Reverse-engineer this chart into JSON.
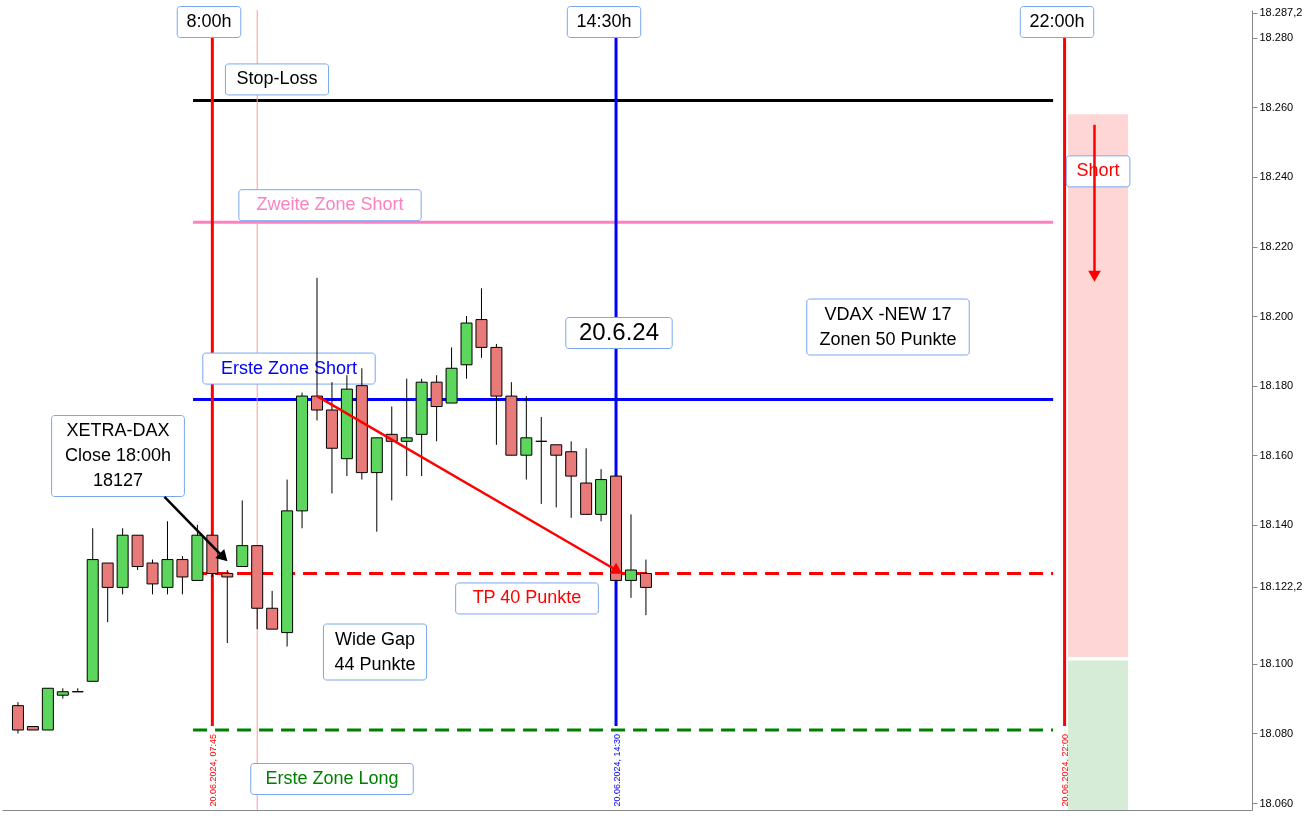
{
  "chart_data": {
    "type": "candlestick",
    "grid": false,
    "xticks": [
      {
        "value": "2024-06-20T07:45",
        "label": "20.06.2024, 07:45"
      },
      {
        "value": "2024-06-20T14:30",
        "label": "20.06.2024, 14:30"
      },
      {
        "value": "2024-06-20T22:00",
        "label": "20.06.2024, 22:00"
      }
    ],
    "x": [
      "2024-06-20T04:30",
      "2024-06-20T04:45",
      "2024-06-20T05:00",
      "2024-06-20T05:15",
      "2024-06-20T05:30",
      "2024-06-20T05:45",
      "2024-06-20T06:00",
      "2024-06-20T06:15",
      "2024-06-20T06:30",
      "2024-06-20T06:45",
      "2024-06-20T07:00",
      "2024-06-20T07:15",
      "2024-06-20T07:30",
      "2024-06-20T07:45",
      "2024-06-20T08:00",
      "2024-06-20T08:15",
      "2024-06-20T08:30",
      "2024-06-20T08:45",
      "2024-06-20T09:00",
      "2024-06-20T09:15",
      "2024-06-20T09:30",
      "2024-06-20T09:45",
      "2024-06-20T10:00",
      "2024-06-20T10:15",
      "2024-06-20T10:30",
      "2024-06-20T10:45",
      "2024-06-20T11:00",
      "2024-06-20T11:15",
      "2024-06-20T11:30",
      "2024-06-20T11:45",
      "2024-06-20T12:00",
      "2024-06-20T12:15",
      "2024-06-20T12:30",
      "2024-06-20T12:45",
      "2024-06-20T13:00",
      "2024-06-20T13:15",
      "2024-06-20T13:30",
      "2024-06-20T13:45",
      "2024-06-20T14:00",
      "2024-06-20T14:15",
      "2024-06-20T14:30",
      "2024-06-20T14:45",
      "2024-06-20T15:00"
    ],
    "ohlc": [
      [
        18088,
        18089,
        18080,
        18081
      ],
      [
        18082,
        18082,
        18081,
        18081
      ],
      [
        18081,
        18093,
        18081,
        18093
      ],
      [
        18091,
        18093,
        18090,
        18092
      ],
      [
        18092,
        18093,
        18092,
        18092
      ],
      [
        18095,
        18139,
        18095,
        18130
      ],
      [
        18129,
        18129,
        18112,
        18122
      ],
      [
        18122,
        18139,
        18120,
        18137
      ],
      [
        18137,
        18137,
        18127,
        18128
      ],
      [
        18129,
        18130,
        18120,
        18123
      ],
      [
        18122,
        18141,
        18120,
        18130
      ],
      [
        18130,
        18131,
        18120,
        18125
      ],
      [
        18124,
        18140,
        18124,
        18137
      ],
      [
        18137,
        18137,
        18125,
        18126
      ],
      [
        18126,
        18127,
        18106,
        18125
      ],
      [
        18128,
        18147,
        18128,
        18134
      ],
      [
        18134,
        18134,
        18110,
        18116
      ],
      [
        18116,
        18121,
        18110,
        18110
      ],
      [
        18109,
        18153,
        18105,
        18144
      ],
      [
        18144,
        18178,
        18139,
        18177
      ],
      [
        18177,
        18211,
        18170,
        18173
      ],
      [
        18173,
        18181,
        18149,
        18162
      ],
      [
        18159,
        18183,
        18154,
        18179
      ],
      [
        18180,
        18185,
        18153,
        18155
      ],
      [
        18155,
        18165,
        18138,
        18165
      ],
      [
        18166,
        18174,
        18147,
        18164
      ],
      [
        18164,
        18182,
        18154,
        18165
      ],
      [
        18166,
        18182,
        18154,
        18181
      ],
      [
        18181,
        18183,
        18164,
        18174
      ],
      [
        18175,
        18191,
        18175,
        18185
      ],
      [
        18186,
        18200,
        18182,
        18198
      ],
      [
        18199,
        18208,
        18188,
        18191
      ],
      [
        18191,
        18192,
        18163,
        18177
      ],
      [
        18177,
        18181,
        18160,
        18160
      ],
      [
        18160,
        18177,
        18153,
        18165
      ],
      [
        18164,
        18171,
        18146,
        18164
      ],
      [
        18163,
        18163,
        18145,
        18160
      ],
      [
        18161,
        18164,
        18142,
        18154
      ],
      [
        18152,
        18162,
        18143,
        18143
      ],
      [
        18143,
        18156,
        18141,
        18153
      ],
      [
        18154,
        18154,
        18124,
        18124
      ],
      [
        18124,
        18143,
        18119,
        18127
      ],
      [
        18126,
        18130,
        18114,
        18122
      ]
    ],
    "colors": [
      "#e87a7a",
      "#e87a7a",
      "#5cd65c",
      "#5cd65c",
      "#000000",
      "#5cd65c",
      "#e87a7a",
      "#5cd65c",
      "#e87a7a",
      "#e87a7a",
      "#5cd65c",
      "#e87a7a",
      "#5cd65c",
      "#e87a7a",
      "#e87a7a",
      "#5cd65c",
      "#e87a7a",
      "#e87a7a",
      "#5cd65c",
      "#5cd65c",
      "#e87a7a",
      "#e87a7a",
      "#5cd65c",
      "#e87a7a",
      "#5cd65c",
      "#e87a7a",
      "#5cd65c",
      "#5cd65c",
      "#e87a7a",
      "#5cd65c",
      "#5cd65c",
      "#e87a7a",
      "#e87a7a",
      "#e87a7a",
      "#5cd65c",
      "#000000",
      "#e87a7a",
      "#e87a7a",
      "#e87a7a",
      "#5cd65c",
      "#e87a7a",
      "#5cd65c",
      "#e87a7a"
    ],
    "xlim": [
      "2024-06-20T04:19",
      "2024-06-21T01:03"
    ],
    "ylim": [
      18058,
      18288
    ],
    "yticks": [
      {
        "value": 18060,
        "label": "18.060"
      },
      {
        "value": 18080,
        "label": "18.080"
      },
      {
        "value": 18100,
        "label": "18.100"
      },
      {
        "value": 18122.2,
        "label": "18.122,2"
      },
      {
        "value": 18140,
        "label": "18.140"
      },
      {
        "value": 18160,
        "label": "18.160"
      },
      {
        "value": 18180,
        "label": "18.180"
      },
      {
        "value": 18200,
        "label": "18.200"
      },
      {
        "value": 18220,
        "label": "18.220"
      },
      {
        "value": 18240,
        "label": "18.240"
      },
      {
        "value": 18260,
        "label": "18.260"
      },
      {
        "value": 18280,
        "label": "18.280"
      },
      {
        "value": 18287.2,
        "label": "18.287,2"
      }
    ],
    "series": [
      {
        "type": "line",
        "color": "#ff0000",
        "x": [
          "2024-06-20T09:30",
          "2024-06-20T14:30"
        ],
        "values": [
          18177,
          18127
        ]
      },
      {
        "type": "line",
        "color": "#000000",
        "x": [
          "2024-06-20T06:57",
          "2024-06-20T07:55"
        ],
        "values": [
          18148,
          18131
        ]
      },
      {
        "type": "line",
        "color": "#ff0000",
        "x": [
          "2024-06-20T22:30",
          "2024-06-20T22:30"
        ],
        "values": [
          18255,
          18212
        ]
      }
    ],
    "ref_lines": [
      {
        "axis": "y",
        "value": 18262,
        "label": "Stop-Loss",
        "color": "#000000",
        "line_style": "solid"
      },
      {
        "axis": "y",
        "value": 18227,
        "label": "Zweite Zone Short",
        "color": "#ff80c0",
        "line_style": "solid"
      },
      {
        "axis": "y",
        "value": 18176,
        "label": "Erste Zone Short",
        "color": "#0000ff",
        "line_style": "solid"
      },
      {
        "axis": "y",
        "value": 18126,
        "label": "TP  40 Punkte",
        "color": "#ff0000",
        "line_style": "dashed"
      },
      {
        "axis": "y",
        "value": 18081,
        "label": "Erste Zone Long",
        "color": "#008000",
        "line_style": "dashed"
      },
      {
        "axis": "x",
        "value": "2024-06-20T07:45",
        "color": "#ff0000",
        "line_style": "solid"
      },
      {
        "axis": "x",
        "value": "2024-06-20T08:30",
        "color": "#ff9999",
        "line_style": "solid"
      },
      {
        "axis": "x",
        "value": "2024-06-20T14:30",
        "color": "#0000ff",
        "line_style": "solid"
      },
      {
        "axis": "x",
        "value": "2024-06-20T22:00",
        "color": "#ff0000",
        "line_style": "solid"
      }
    ],
    "bands": [
      {
        "axis": "y",
        "from": 18102,
        "to": 18258,
        "color": "#ffd6d6",
        "label": "Short"
      },
      {
        "axis": "y",
        "from": 18058,
        "to": 18101,
        "color": "#d6ecd6"
      }
    ],
    "annotations": [
      "8:00h",
      "14:30h",
      "22:00h",
      "XETRA-DAX\nClose 18:00h\n18127",
      "20.6.24",
      "VDAX -NEW 17\nZonen 50 Punkte",
      "Wide Gap\n44 Punkte"
    ]
  }
}
